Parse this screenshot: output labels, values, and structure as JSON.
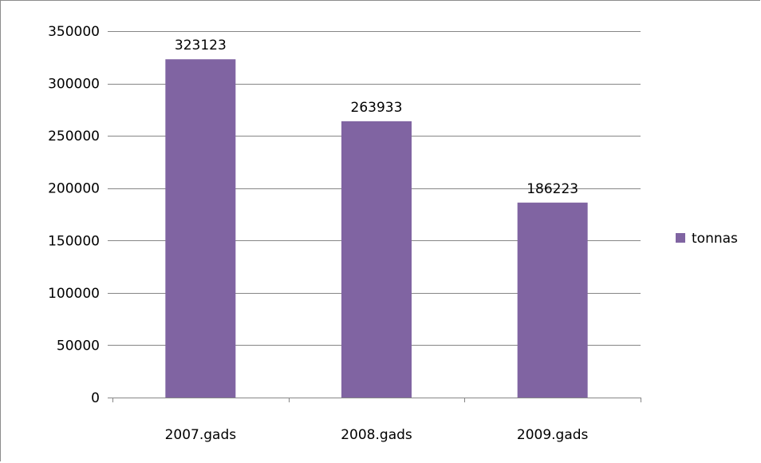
{
  "chart_data": {
    "type": "bar",
    "categories": [
      "2007.gads",
      "2008.gads",
      "2009.gads"
    ],
    "series": [
      {
        "name": "tonnas",
        "values": [
          323123,
          263933,
          186223
        ],
        "color": "#8064a2"
      }
    ],
    "data_labels": [
      "323123",
      "263933",
      "186223"
    ],
    "y_ticks": [
      "0",
      "50000",
      "100000",
      "150000",
      "200000",
      "250000",
      "300000",
      "350000"
    ],
    "ylim": [
      0,
      350000
    ],
    "grid": true,
    "legend": "right",
    "gridline_color": "#868686",
    "axis_color": "#868686"
  }
}
